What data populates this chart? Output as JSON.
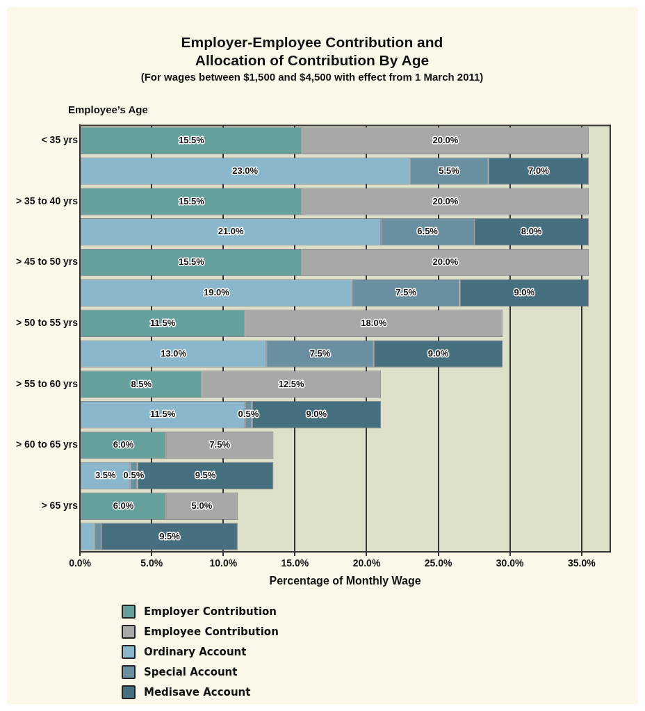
{
  "chart_data": {
    "type": "bar",
    "orientation": "horizontal",
    "stacked": true,
    "title": "Employer-Employee Contribution and\nAllocation of Contribution By Age",
    "subtitle": "(For wages between $1,500 and $4,500 with effect from 1 March 2011)",
    "ylabel": "Employee’s Age",
    "xlabel": "Percentage of Monthly Wage",
    "categories": [
      "< 35 yrs",
      null,
      "> 35 to 40 yrs",
      null,
      "> 45 to 50 yrs",
      null,
      "> 50 to 55 yrs",
      null,
      "> 55 to 60 yrs",
      null,
      "> 60 to 65 yrs",
      null,
      "> 65 yrs",
      null
    ],
    "series": [
      {
        "name": "Employer Contribution",
        "color": "#65a09c",
        "values": [
          15.5,
          null,
          15.5,
          null,
          15.5,
          null,
          11.5,
          null,
          8.5,
          null,
          6.0,
          null,
          6.0,
          null
        ],
        "value_labels": [
          "15.5%",
          null,
          "15.5%",
          null,
          "15.5%",
          null,
          "11.5%",
          null,
          "8.5%",
          null,
          "6.0%",
          null,
          "6.0%",
          null
        ]
      },
      {
        "name": "Employee Contribution",
        "color": "#a8a8a8",
        "values": [
          20.0,
          null,
          20.0,
          null,
          20.0,
          null,
          18.0,
          null,
          12.5,
          null,
          7.5,
          null,
          5.0,
          null
        ],
        "value_labels": [
          "20.0%",
          null,
          "20.0%",
          null,
          "20.0%",
          null,
          "18.0%",
          null,
          "12.5%",
          null,
          "7.5%",
          null,
          "5.0%",
          null
        ]
      },
      {
        "name": "Ordinary Account",
        "color": "#8ab7cb",
        "values": [
          null,
          23.0,
          null,
          21.0,
          null,
          19.0,
          null,
          13.0,
          null,
          11.5,
          null,
          3.5,
          null,
          1.0
        ],
        "value_labels": [
          null,
          "23.0%",
          null,
          "21.0%",
          null,
          "19.0%",
          null,
          "13.0%",
          null,
          "11.5%",
          null,
          "3.5%",
          null,
          null
        ]
      },
      {
        "name": "Special Account",
        "color": "#6a8fa0",
        "values": [
          null,
          5.5,
          null,
          6.5,
          null,
          7.5,
          null,
          7.5,
          null,
          0.5,
          null,
          0.5,
          null,
          0.5
        ],
        "value_labels": [
          null,
          "5.5%",
          null,
          "6.5%",
          null,
          "7.5%",
          null,
          "7.5%",
          null,
          "0.5%",
          null,
          "0.5%",
          null,
          null
        ]
      },
      {
        "name": "Medisave Account",
        "color": "#46707f",
        "values": [
          null,
          7.0,
          null,
          8.0,
          null,
          9.0,
          null,
          9.0,
          null,
          9.0,
          null,
          9.5,
          null,
          9.5
        ],
        "value_labels": [
          null,
          "7.0%",
          null,
          "8.0%",
          null,
          "9.0%",
          null,
          "9.0%",
          null,
          "9.0%",
          null,
          "9.5%",
          null,
          "9.5%"
        ]
      }
    ],
    "xlim": [
      0,
      37
    ],
    "xticks": [
      {
        "value": 0,
        "label": "0.0%"
      },
      {
        "value": 5,
        "label": "5.0%"
      },
      {
        "value": 10,
        "label": "10.0%"
      },
      {
        "value": 15,
        "label": "15.0%"
      },
      {
        "value": 20,
        "label": "20.0%"
      },
      {
        "value": 25,
        "label": "25.0%"
      },
      {
        "value": 30,
        "label": "30.0%"
      },
      {
        "value": 35,
        "label": "35.0%"
      }
    ],
    "grid": "x",
    "legend": "bottom left"
  }
}
